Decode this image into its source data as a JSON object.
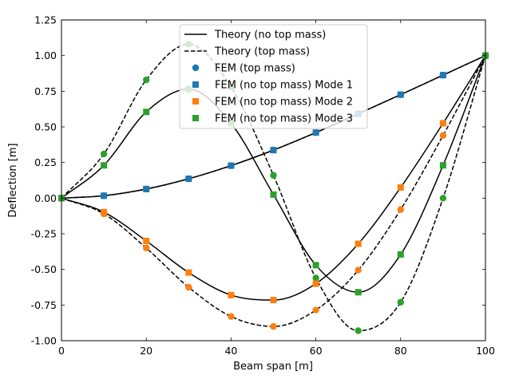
{
  "chart_data": {
    "type": "line",
    "title": "",
    "xlabel": "Beam span [m]",
    "ylabel": "Deflection [m]",
    "xlim": [
      0,
      100
    ],
    "ylim": [
      -1.0,
      1.25
    ],
    "grid": false,
    "legend_position": "top-center",
    "x_ticks": [
      "0",
      "20",
      "40",
      "60",
      "80",
      "100"
    ],
    "y_ticks": [
      "-1.00",
      "-0.75",
      "-0.50",
      "-0.25",
      "0.00",
      "0.25",
      "0.50",
      "0.75",
      "1.00",
      "1.25"
    ],
    "colors": {
      "blue": "#1f77b4",
      "orange": "#ff7f0e",
      "green": "#2ca02c",
      "line": "#000000"
    },
    "series": [
      {
        "name": "Theory (no top mass)",
        "kind": "line",
        "style": "solid",
        "color": "#000000",
        "x": [
          0,
          10,
          20,
          30,
          40,
          50,
          60,
          70,
          80,
          90,
          100
        ],
        "y": [
          0.0,
          0.017,
          0.064,
          0.136,
          0.228,
          0.337,
          0.46,
          0.592,
          0.726,
          0.863,
          1.0
        ]
      },
      {
        "name": "Theory (no top mass)",
        "kind": "line",
        "style": "solid",
        "color": "#000000",
        "x": [
          0,
          10,
          20,
          30,
          40,
          50,
          60,
          70,
          80,
          90,
          100
        ],
        "y": [
          0.0,
          -0.098,
          -0.3,
          -0.522,
          -0.68,
          -0.715,
          -0.6,
          -0.32,
          0.075,
          0.525,
          1.0
        ]
      },
      {
        "name": "Theory (no top mass)",
        "kind": "line",
        "style": "solid",
        "color": "#000000",
        "x": [
          0,
          10,
          20,
          30,
          40,
          50,
          60,
          70,
          80,
          90,
          100
        ],
        "y": [
          0.0,
          0.23,
          0.605,
          0.765,
          0.525,
          0.025,
          -0.47,
          -0.66,
          -0.395,
          0.23,
          1.0
        ]
      },
      {
        "name": "Theory (top mass)",
        "kind": "line",
        "style": "dashed",
        "color": "#000000",
        "x": [
          0,
          10,
          20,
          30,
          40,
          50,
          60,
          70,
          80,
          90,
          100
        ],
        "y": [
          0.0,
          0.017,
          0.064,
          0.136,
          0.228,
          0.337,
          0.46,
          0.592,
          0.726,
          0.863,
          1.0
        ]
      },
      {
        "name": "Theory (top mass)",
        "kind": "line",
        "style": "dashed",
        "color": "#000000",
        "x": [
          0,
          10,
          20,
          30,
          40,
          50,
          60,
          70,
          80,
          90,
          100
        ],
        "y": [
          0.0,
          -0.11,
          -0.35,
          -0.625,
          -0.83,
          -0.9,
          -0.785,
          -0.505,
          -0.08,
          0.44,
          1.0
        ]
      },
      {
        "name": "Theory (top mass)",
        "kind": "line",
        "style": "dashed",
        "color": "#000000",
        "x": [
          0,
          10,
          20,
          30,
          40,
          50,
          60,
          70,
          80,
          90,
          100
        ],
        "y": [
          0.0,
          0.31,
          0.83,
          1.08,
          0.78,
          0.16,
          -0.56,
          -0.93,
          -0.73,
          0.0,
          1.0
        ]
      },
      {
        "name": "FEM (top mass)",
        "kind": "scatter",
        "marker": "circle",
        "color": "#1f77b4",
        "x": [
          0,
          10,
          20,
          30,
          40,
          50,
          60,
          70,
          80,
          90,
          100
        ],
        "y": [
          0.0,
          0.017,
          0.064,
          0.136,
          0.228,
          0.337,
          0.46,
          0.592,
          0.726,
          0.863,
          1.0
        ]
      },
      {
        "name": "FEM (top mass)",
        "kind": "scatter",
        "marker": "circle",
        "color": "#ff7f0e",
        "x": [
          0,
          10,
          20,
          30,
          40,
          50,
          60,
          70,
          80,
          90,
          100
        ],
        "y": [
          0.0,
          -0.11,
          -0.35,
          -0.625,
          -0.83,
          -0.9,
          -0.785,
          -0.505,
          -0.08,
          0.44,
          1.0
        ]
      },
      {
        "name": "FEM (top mass)",
        "kind": "scatter",
        "marker": "circle",
        "color": "#2ca02c",
        "x": [
          0,
          10,
          20,
          30,
          40,
          50,
          60,
          70,
          80,
          90,
          100
        ],
        "y": [
          0.0,
          0.31,
          0.83,
          1.08,
          0.78,
          0.16,
          -0.56,
          -0.93,
          -0.73,
          0.0,
          1.0
        ]
      },
      {
        "name": "FEM (no top mass) Mode 1",
        "kind": "scatter",
        "marker": "square",
        "color": "#1f77b4",
        "x": [
          0,
          10,
          20,
          30,
          40,
          50,
          60,
          70,
          80,
          90,
          100
        ],
        "y": [
          0.0,
          0.017,
          0.064,
          0.136,
          0.228,
          0.337,
          0.46,
          0.592,
          0.726,
          0.863,
          1.0
        ]
      },
      {
        "name": "FEM (no top mass) Mode 2",
        "kind": "scatter",
        "marker": "square",
        "color": "#ff7f0e",
        "x": [
          0,
          10,
          20,
          30,
          40,
          50,
          60,
          70,
          80,
          90,
          100
        ],
        "y": [
          0.0,
          -0.098,
          -0.3,
          -0.522,
          -0.68,
          -0.715,
          -0.6,
          -0.32,
          0.075,
          0.525,
          1.0
        ]
      },
      {
        "name": "FEM (no top mass) Mode 3",
        "kind": "scatter",
        "marker": "square",
        "color": "#2ca02c",
        "x": [
          0,
          10,
          20,
          30,
          40,
          50,
          60,
          70,
          80,
          90,
          100
        ],
        "y": [
          0.0,
          0.23,
          0.605,
          0.765,
          0.525,
          0.025,
          -0.47,
          -0.66,
          -0.395,
          0.23,
          1.0
        ]
      }
    ],
    "legend": [
      {
        "label": "Theory (no top mass)",
        "kind": "solid",
        "color": "#000000"
      },
      {
        "label": "Theory (top mass)",
        "kind": "dashed",
        "color": "#000000"
      },
      {
        "label": "FEM (top mass)",
        "kind": "circle",
        "color": "#1f77b4"
      },
      {
        "label": "FEM (no top mass) Mode 1",
        "kind": "square",
        "color": "#1f77b4"
      },
      {
        "label": "FEM (no top mass) Mode 2",
        "kind": "square",
        "color": "#ff7f0e"
      },
      {
        "label": "FEM (no top mass) Mode 3",
        "kind": "square",
        "color": "#2ca02c"
      }
    ]
  }
}
